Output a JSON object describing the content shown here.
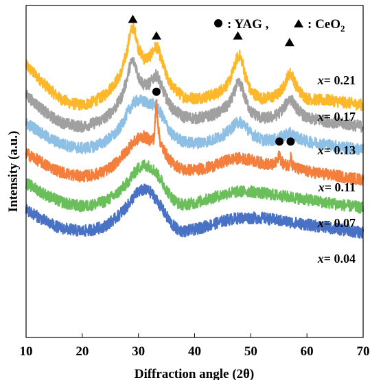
{
  "chart_data": {
    "type": "line",
    "xlabel": "Diffraction angle (2θ)",
    "ylabel": "Intensity (a.u.)",
    "xlim": [
      10,
      70
    ],
    "xticks": [
      10,
      20,
      30,
      40,
      50,
      60,
      70
    ],
    "yticks_shown": false,
    "legend": {
      "placement": "top-right",
      "entries": [
        {
          "marker": "circle",
          "label": "YAG"
        },
        {
          "marker": "triangle",
          "label": "CeO2"
        }
      ]
    },
    "series": [
      {
        "name": "x= 0.21",
        "color": "#FDB72A",
        "x": [
          10,
          12,
          14,
          16,
          18,
          20,
          22,
          24,
          26,
          27,
          28,
          28.5,
          29,
          29.5,
          30,
          31,
          32,
          33,
          33.5,
          34,
          35,
          36,
          38,
          40,
          42,
          44,
          46,
          47,
          47.5,
          48,
          48.5,
          49,
          50,
          52,
          54,
          55,
          56,
          56.5,
          57,
          57.5,
          58,
          59,
          60,
          62,
          64,
          66,
          68,
          70
        ],
        "y": [
          0.82,
          0.785,
          0.75,
          0.72,
          0.705,
          0.7,
          0.71,
          0.73,
          0.77,
          0.8,
          0.865,
          0.915,
          0.935,
          0.915,
          0.87,
          0.84,
          0.845,
          0.875,
          0.87,
          0.84,
          0.79,
          0.755,
          0.725,
          0.72,
          0.725,
          0.735,
          0.765,
          0.81,
          0.84,
          0.85,
          0.83,
          0.79,
          0.74,
          0.72,
          0.725,
          0.735,
          0.76,
          0.785,
          0.795,
          0.785,
          0.76,
          0.735,
          0.72,
          0.715,
          0.715,
          0.71,
          0.705,
          0.7
        ]
      },
      {
        "name": "x= 0.17",
        "color": "#A0A0A0",
        "x": [
          10,
          12,
          14,
          16,
          18,
          20,
          22,
          24,
          26,
          27,
          28,
          28.5,
          29,
          29.5,
          30,
          31,
          32,
          33,
          33.5,
          34,
          35,
          36,
          38,
          40,
          42,
          44,
          46,
          47,
          47.5,
          48,
          48.5,
          49,
          50,
          52,
          54,
          55,
          56,
          56.5,
          57,
          57.5,
          58,
          59,
          60,
          62,
          64,
          66,
          68,
          70
        ],
        "y": [
          0.73,
          0.7,
          0.67,
          0.65,
          0.64,
          0.635,
          0.645,
          0.66,
          0.695,
          0.725,
          0.78,
          0.82,
          0.835,
          0.82,
          0.785,
          0.76,
          0.765,
          0.79,
          0.785,
          0.76,
          0.72,
          0.69,
          0.665,
          0.66,
          0.665,
          0.675,
          0.7,
          0.735,
          0.76,
          0.765,
          0.75,
          0.72,
          0.68,
          0.66,
          0.665,
          0.675,
          0.695,
          0.71,
          0.72,
          0.71,
          0.695,
          0.675,
          0.66,
          0.655,
          0.65,
          0.645,
          0.64,
          0.635
        ]
      },
      {
        "name": "x= 0.13",
        "color": "#8EBFE5",
        "x": [
          10,
          12,
          14,
          16,
          18,
          20,
          22,
          24,
          26,
          27,
          28,
          29,
          30,
          31,
          32,
          33,
          34,
          35,
          36,
          38,
          40,
          42,
          44,
          46,
          47,
          48,
          49,
          50,
          52,
          54,
          55,
          56,
          57,
          58,
          60,
          62,
          64,
          66,
          68,
          70
        ],
        "y": [
          0.645,
          0.625,
          0.6,
          0.585,
          0.575,
          0.57,
          0.575,
          0.59,
          0.615,
          0.64,
          0.675,
          0.705,
          0.715,
          0.71,
          0.705,
          0.7,
          0.675,
          0.64,
          0.61,
          0.59,
          0.585,
          0.59,
          0.6,
          0.62,
          0.64,
          0.65,
          0.64,
          0.615,
          0.595,
          0.595,
          0.6,
          0.61,
          0.615,
          0.605,
          0.59,
          0.585,
          0.58,
          0.575,
          0.57,
          0.565
        ]
      },
      {
        "name": "x= 0.11",
        "color": "#F47F3C",
        "x": [
          10,
          12,
          14,
          16,
          18,
          20,
          22,
          24,
          26,
          28,
          29,
          30,
          31,
          32,
          32.8,
          33.2,
          33.6,
          34,
          35,
          36,
          38,
          40,
          42,
          44,
          46,
          48,
          50,
          52,
          54,
          54.8,
          55.1,
          55.4,
          56,
          56.8,
          57.1,
          57.4,
          58,
          60,
          62,
          64,
          66,
          68,
          70
        ],
        "y": [
          0.555,
          0.535,
          0.515,
          0.5,
          0.49,
          0.485,
          0.49,
          0.5,
          0.525,
          0.565,
          0.585,
          0.6,
          0.605,
          0.595,
          0.6,
          0.715,
          0.62,
          0.58,
          0.55,
          0.525,
          0.505,
          0.505,
          0.51,
          0.52,
          0.535,
          0.54,
          0.535,
          0.525,
          0.52,
          0.53,
          0.555,
          0.53,
          0.52,
          0.52,
          0.55,
          0.52,
          0.51,
          0.5,
          0.495,
          0.49,
          0.485,
          0.48,
          0.475
        ]
      },
      {
        "name": "x= 0.07",
        "color": "#6ABF5A",
        "x": [
          10,
          12,
          14,
          16,
          18,
          20,
          22,
          24,
          26,
          28,
          29,
          30,
          31,
          32,
          33,
          34,
          35,
          36,
          37,
          38,
          40,
          42,
          44,
          46,
          48,
          50,
          52,
          54,
          56,
          58,
          60,
          62,
          64,
          66,
          68,
          70
        ],
        "y": [
          0.465,
          0.445,
          0.425,
          0.41,
          0.4,
          0.395,
          0.4,
          0.41,
          0.43,
          0.465,
          0.49,
          0.51,
          0.52,
          0.515,
          0.5,
          0.475,
          0.445,
          0.42,
          0.405,
          0.4,
          0.405,
          0.415,
          0.425,
          0.435,
          0.44,
          0.44,
          0.435,
          0.43,
          0.425,
          0.42,
          0.415,
          0.41,
          0.405,
          0.4,
          0.395,
          0.39
        ]
      },
      {
        "name": "x= 0.04",
        "color": "#4A72C4",
        "x": [
          10,
          12,
          14,
          16,
          18,
          20,
          22,
          24,
          26,
          28,
          29,
          30,
          31,
          32,
          33,
          34,
          35,
          36,
          37,
          38,
          40,
          42,
          44,
          46,
          48,
          50,
          52,
          54,
          56,
          58,
          60,
          62,
          64,
          66,
          68,
          70
        ],
        "y": [
          0.385,
          0.365,
          0.345,
          0.33,
          0.325,
          0.32,
          0.325,
          0.335,
          0.36,
          0.395,
          0.42,
          0.44,
          0.445,
          0.44,
          0.42,
          0.395,
          0.365,
          0.34,
          0.325,
          0.32,
          0.325,
          0.335,
          0.345,
          0.355,
          0.36,
          0.36,
          0.36,
          0.355,
          0.35,
          0.345,
          0.34,
          0.335,
          0.33,
          0.325,
          0.32,
          0.315
        ]
      }
    ],
    "annotations": [
      {
        "marker": "triangle",
        "x": 29,
        "y": 0.96
      },
      {
        "marker": "triangle",
        "x": 33.2,
        "y": 0.91
      },
      {
        "marker": "triangle",
        "x": 47.7,
        "y": 0.91
      },
      {
        "marker": "triangle",
        "x": 56.9,
        "y": 0.89
      },
      {
        "marker": "circle",
        "x": 33.2,
        "y": 0.74
      },
      {
        "marker": "circle",
        "x": 55.1,
        "y": 0.59
      },
      {
        "marker": "circle",
        "x": 57.1,
        "y": 0.59
      }
    ]
  }
}
